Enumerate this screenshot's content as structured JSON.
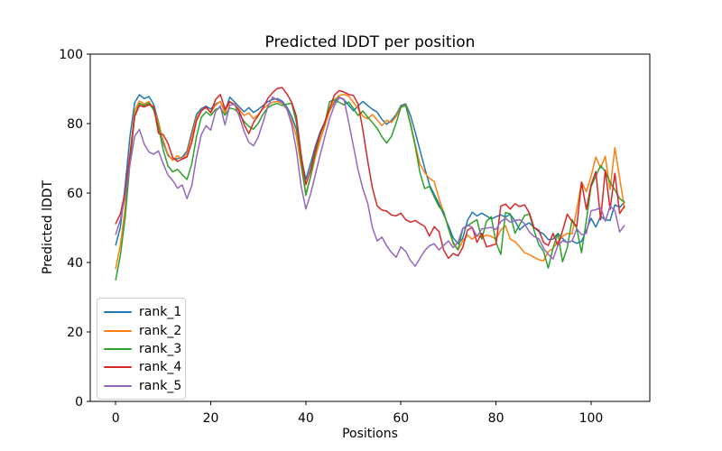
{
  "figure": {
    "title": "Predicted lDDT per position",
    "xlabel": "Positions",
    "ylabel": "Predicted lDDT"
  },
  "chart_data": {
    "type": "line",
    "title": "Predicted lDDT per position",
    "xlabel": "Positions",
    "ylabel": "Predicted lDDT",
    "xlim": [
      -5.35,
      112.35
    ],
    "ylim": [
      0,
      100
    ],
    "x_ticks": [
      0,
      20,
      40,
      60,
      80,
      100
    ],
    "y_ticks": [
      0,
      20,
      40,
      60,
      80,
      100
    ],
    "grid": false,
    "legend_position": "lower left",
    "line_width": 1.5,
    "x": [
      0,
      1,
      2,
      3,
      4,
      5,
      6,
      7,
      8,
      9,
      10,
      11,
      12,
      13,
      14,
      15,
      16,
      17,
      18,
      19,
      20,
      21,
      22,
      23,
      24,
      25,
      26,
      27,
      28,
      29,
      30,
      31,
      32,
      33,
      34,
      35,
      36,
      37,
      38,
      39,
      40,
      41,
      42,
      43,
      44,
      45,
      46,
      47,
      48,
      49,
      50,
      51,
      52,
      53,
      54,
      55,
      56,
      57,
      58,
      59,
      60,
      61,
      62,
      63,
      64,
      65,
      66,
      67,
      68,
      69,
      70,
      71,
      72,
      73,
      74,
      75,
      76,
      77,
      78,
      79,
      80,
      81,
      82,
      83,
      84,
      85,
      86,
      87,
      88,
      89,
      90,
      91,
      92,
      93,
      94,
      95,
      96,
      97,
      98,
      99,
      100,
      101,
      102,
      103,
      104,
      105,
      106,
      107
    ],
    "series": [
      {
        "name": "rank_1",
        "color": "#1f77b4",
        "values": [
          45.0,
          50.2,
          62.1,
          76.3,
          86.1,
          88.3,
          87.2,
          87.8,
          85.5,
          80.5,
          74.5,
          70.8,
          69.6,
          69.9,
          70.3,
          72.1,
          77.5,
          82.6,
          84.3,
          85.0,
          84.2,
          85.6,
          86.3,
          83.6,
          87.6,
          86.2,
          84.8,
          83.4,
          84.6,
          83.2,
          84.1,
          85.2,
          86.3,
          86.9,
          87.2,
          86.5,
          84.8,
          82.1,
          78.4,
          70.3,
          63.9,
          68.6,
          73.4,
          77.6,
          80.4,
          83.6,
          86.1,
          87.6,
          86.9,
          85.3,
          83.7,
          85.1,
          86.4,
          85.2,
          84.1,
          83.3,
          81.2,
          79.8,
          80.9,
          82.6,
          85.2,
          85.7,
          82.4,
          77.6,
          72.3,
          67.2,
          62.4,
          59.6,
          56.9,
          53.8,
          50.6,
          47.1,
          45.4,
          46.9,
          52.1,
          54.5,
          53.4,
          54.2,
          53.4,
          52.5,
          53.2,
          53.7,
          53.1,
          53.9,
          51.9,
          49.4,
          50.7,
          51.4,
          50.1,
          48.9,
          48.2,
          46.6,
          46.7,
          48.4,
          46.9,
          45.7,
          46.2,
          45.5,
          46.1,
          49.3,
          52.7,
          50.2,
          53.3,
          52.3,
          52.1,
          56.6,
          55.9,
          57.3
        ]
      },
      {
        "name": "rank_2",
        "color": "#ff7f0e",
        "values": [
          38.2,
          45.1,
          55.8,
          70.9,
          83.8,
          86.5,
          85.6,
          86.3,
          84.4,
          80.2,
          75.1,
          71.2,
          69.4,
          70.8,
          69.7,
          71.3,
          76.4,
          81.6,
          83.8,
          84.6,
          83.2,
          85.3,
          86.4,
          83.1,
          86.2,
          85.6,
          84.1,
          82.3,
          83.1,
          81.4,
          82.6,
          84.3,
          85.4,
          86.1,
          86.4,
          85.8,
          84.1,
          80.9,
          76.4,
          67.8,
          59.8,
          64.6,
          70.3,
          75.2,
          79.4,
          83.6,
          86.7,
          88.1,
          88.4,
          87.9,
          86.1,
          84.3,
          82.1,
          81.4,
          82.6,
          81.1,
          79.4,
          81.0,
          80.3,
          82.1,
          84.8,
          85.4,
          80.2,
          74.1,
          68.3,
          65.9,
          64.2,
          63.3,
          58.4,
          54.5,
          49.8,
          45.4,
          43.6,
          46.2,
          47.9,
          46.7,
          47.9,
          47.2,
          47.9,
          47.5,
          46.7,
          49.3,
          50.6,
          46.7,
          46.0,
          44.5,
          42.8,
          42.3,
          41.5,
          40.8,
          40.5,
          43.1,
          44.1,
          45.9,
          47.5,
          48.4,
          48.2,
          55.3,
          63.2,
          60.4,
          64.8,
          70.4,
          67.2,
          70.6,
          61.0,
          73.1,
          64.3,
          55.8
        ]
      },
      {
        "name": "rank_3",
        "color": "#2ca02c",
        "values": [
          35.0,
          42.1,
          52.9,
          68.7,
          82.4,
          85.8,
          85.2,
          85.9,
          83.9,
          79.1,
          72.4,
          67.8,
          66.1,
          66.8,
          65.3,
          63.9,
          68.4,
          76.2,
          81.8,
          83.4,
          82.3,
          84.1,
          84.6,
          82.4,
          84.5,
          84.1,
          82.9,
          80.6,
          79.2,
          78.4,
          80.1,
          82.7,
          84.6,
          85.4,
          85.8,
          85.2,
          85.6,
          85.9,
          80.4,
          69.2,
          59.3,
          65.1,
          71.6,
          76.8,
          80.2,
          86.3,
          86.9,
          86.1,
          85.4,
          86.2,
          84.4,
          82.3,
          83.6,
          81.9,
          80.3,
          78.6,
          76.2,
          74.4,
          76.3,
          80.2,
          84.7,
          85.2,
          79.8,
          73.6,
          65.9,
          61.3,
          61.9,
          58.9,
          56.1,
          54.6,
          49.8,
          45.8,
          43.6,
          49.7,
          50.6,
          51.5,
          52.3,
          46.7,
          51.9,
          53.2,
          45.8,
          42.3,
          54.4,
          54.0,
          48.4,
          50.9,
          53.5,
          54.0,
          49.3,
          45.2,
          43.2,
          38.4,
          44.1,
          48.4,
          40.2,
          44.3,
          52.3,
          49.8,
          42.8,
          52.1,
          61.8,
          64.9,
          67.9,
          66.2,
          63.1,
          60.9,
          58.4,
          57.4
        ]
      },
      {
        "name": "rank_4",
        "color": "#d62728",
        "values": [
          51.2,
          54.0,
          60.3,
          71.2,
          82.1,
          85.2,
          84.8,
          85.4,
          84.9,
          77.2,
          76.8,
          74.3,
          70.2,
          69.1,
          69.8,
          70.4,
          74.6,
          80.8,
          83.6,
          84.8,
          83.1,
          86.9,
          88.4,
          84.2,
          86.3,
          85.4,
          83.6,
          79.8,
          77.1,
          80.3,
          82.3,
          84.6,
          87.2,
          88.9,
          90.1,
          90.4,
          88.6,
          86.2,
          82.1,
          71.2,
          62.4,
          66.8,
          72.3,
          76.9,
          80.6,
          84.3,
          88.2,
          89.5,
          89.1,
          88.4,
          88.1,
          85.6,
          78.1,
          69.3,
          61.5,
          56.3,
          55.1,
          54.8,
          53.7,
          53.4,
          54.2,
          52.3,
          51.6,
          52.1,
          51.2,
          50.4,
          47.6,
          50.3,
          48.9,
          43.6,
          41.2,
          42.6,
          41.9,
          44.3,
          49.3,
          50.1,
          45.8,
          48.4,
          44.5,
          44.9,
          45.3,
          56.2,
          56.8,
          55.4,
          56.9,
          56.1,
          56.6,
          54.3,
          50.1,
          49.3,
          45.8,
          44.9,
          48.4,
          44.9,
          49.1,
          53.9,
          51.8,
          50.4,
          63.1,
          55.3,
          62.3,
          66.2,
          52.3,
          66.6,
          55.3,
          65.7,
          54.1,
          56.2
        ]
      },
      {
        "name": "rank_5",
        "color": "#9467bd",
        "values": [
          48.1,
          52.3,
          58.9,
          68.2,
          76.4,
          78.3,
          74.1,
          71.8,
          71.2,
          72.1,
          68.4,
          65.2,
          63.6,
          61.4,
          62.3,
          58.4,
          62.1,
          70.3,
          76.8,
          79.4,
          78.1,
          83.4,
          85.1,
          79.6,
          85.3,
          85.6,
          82.1,
          77.8,
          74.6,
          73.6,
          76.2,
          80.4,
          84.9,
          87.6,
          86.8,
          86.1,
          84.3,
          79.8,
          72.4,
          62.1,
          55.4,
          59.8,
          65.3,
          70.9,
          76.3,
          81.4,
          85.2,
          87.4,
          87.1,
          80.5,
          73.5,
          66.6,
          61.2,
          57.1,
          50.1,
          46.2,
          47.3,
          44.8,
          42.9,
          41.5,
          44.5,
          43.2,
          40.6,
          38.9,
          41.2,
          43.4,
          44.8,
          45.4,
          43.6,
          44.9,
          46.2,
          44.3,
          45.8,
          49.8,
          50.8,
          50.1,
          47.5,
          49.7,
          49.9,
          50.1,
          49.5,
          51.8,
          52.7,
          51.6,
          52.1,
          52.3,
          51.2,
          48.8,
          47.5,
          46.8,
          44.1,
          42.3,
          41.0,
          44.9,
          46.2,
          45.8,
          46.2,
          49.7,
          48.0,
          48.4,
          54.9,
          55.2,
          55.8,
          51.9,
          56.2,
          54.9,
          48.8,
          50.6
        ]
      }
    ]
  }
}
